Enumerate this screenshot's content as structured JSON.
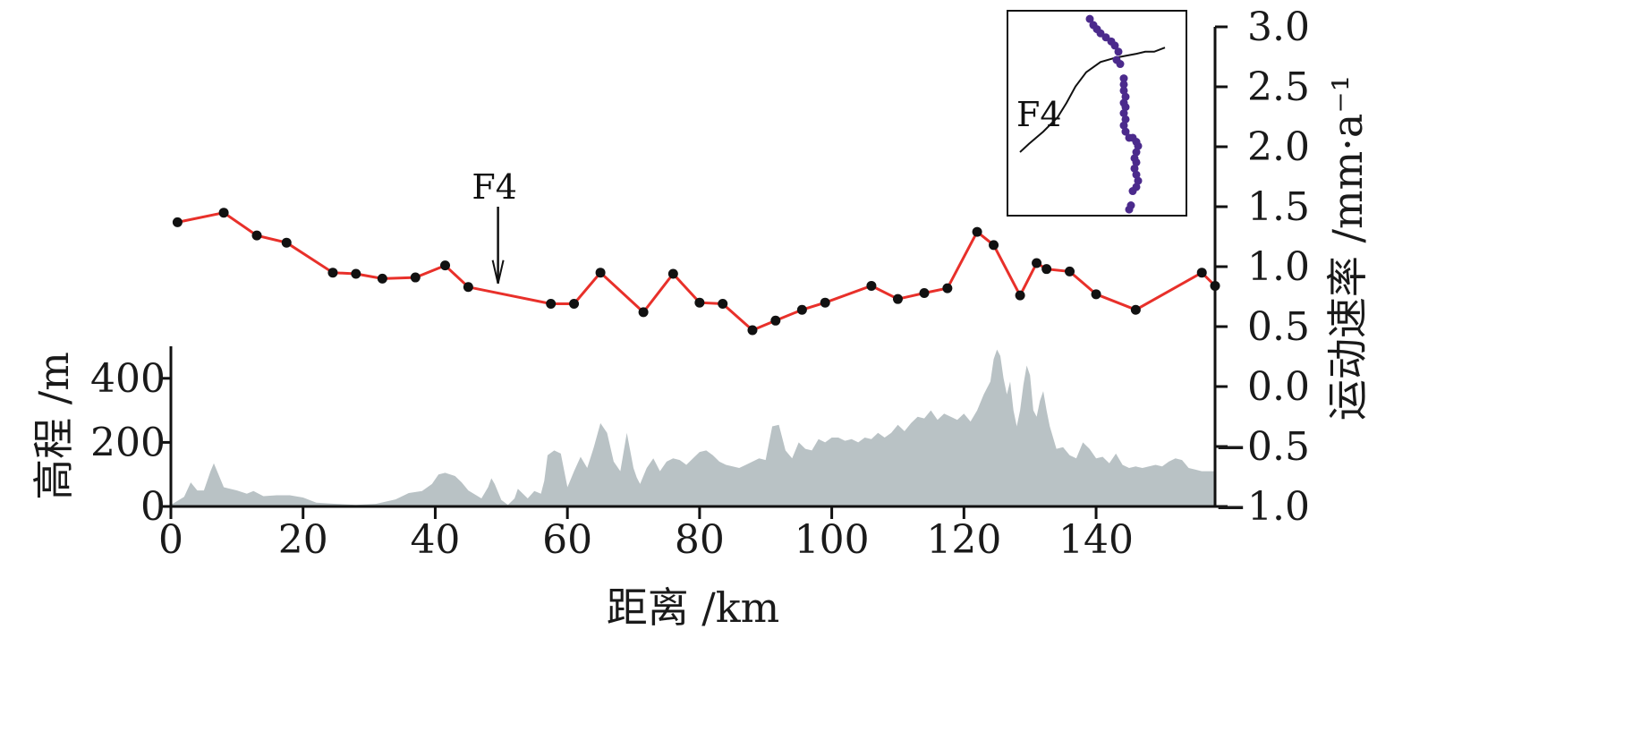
{
  "chart_data": {
    "type": "line",
    "xlabel": "距离 /km",
    "ylabel_left": "高程 /m",
    "ylabel_right": "运动速率 /mm·a⁻¹",
    "xlim": [
      0,
      158
    ],
    "ylim_left": [
      0,
      500
    ],
    "ylim_right": [
      -1.0,
      3.0
    ],
    "x_ticks": [
      0,
      20,
      40,
      60,
      80,
      100,
      120,
      140
    ],
    "x_tick_labels": [
      "0",
      "20",
      "40",
      "60",
      "80",
      "100",
      "120",
      "140"
    ],
    "y_left_ticks": [
      0,
      200,
      400
    ],
    "y_left_tick_labels": [
      "0",
      "200",
      "400"
    ],
    "y_right_ticks": [
      -1.0,
      -0.5,
      0.0,
      0.5,
      1.0,
      1.5,
      2.0,
      2.5,
      3.0
    ],
    "y_right_tick_labels": [
      "−1.0",
      "−0.5",
      "0.0",
      "0.5",
      "1.0",
      "1.5",
      "2.0",
      "2.5",
      "3.0"
    ],
    "colors": {
      "rate_line": "#e8302a",
      "rate_point": "#111111",
      "elevation_fill": "#b9c2c5",
      "inset_point": "#4b2a8c"
    },
    "series": [
      {
        "axis": "right",
        "kind": "line",
        "x": [
          1,
          8,
          13,
          17.5,
          24.5,
          28,
          32,
          37,
          41.5,
          45,
          57.5,
          61,
          65,
          71.5,
          76,
          80,
          83.5,
          88,
          91.5,
          95.5,
          99,
          106,
          110,
          114,
          117.5,
          122,
          124.5,
          128.5,
          131,
          132.5,
          136,
          140,
          146,
          156,
          158
        ],
        "y": [
          1.37,
          1.45,
          1.26,
          1.2,
          0.95,
          0.94,
          0.9,
          0.91,
          1.01,
          0.83,
          0.69,
          0.69,
          0.95,
          0.62,
          0.94,
          0.7,
          0.69,
          0.47,
          0.55,
          0.64,
          0.7,
          0.84,
          0.73,
          0.78,
          0.82,
          1.29,
          1.18,
          0.76,
          1.03,
          0.98,
          0.96,
          0.77,
          0.64,
          0.95,
          0.84
        ]
      },
      {
        "axis": "left",
        "kind": "area",
        "x": [
          0,
          2,
          3,
          4,
          5,
          6,
          6.5,
          7,
          8,
          10,
          11.5,
          12.5,
          14,
          16,
          18,
          20,
          22,
          25,
          28,
          31,
          34,
          36,
          38,
          39.5,
          40.5,
          41.5,
          43,
          44,
          45,
          47,
          48,
          48.5,
          49,
          50,
          51,
          52,
          52.5,
          53,
          54,
          55,
          56,
          56.5,
          57,
          58,
          59,
          60,
          61,
          62,
          63,
          64,
          65,
          66,
          67,
          68,
          69,
          70,
          70.5,
          71,
          72,
          73,
          74,
          75,
          76,
          77,
          78,
          79,
          80,
          81,
          82,
          83,
          84,
          85,
          86,
          87,
          88,
          89,
          90,
          91,
          92,
          93,
          94,
          95,
          96,
          97,
          98,
          99,
          100,
          101,
          102,
          103,
          104,
          105,
          106,
          107,
          108,
          109,
          110,
          111,
          112,
          113,
          114,
          115,
          116,
          117,
          118,
          119,
          120,
          121,
          122,
          123,
          124,
          124.5,
          125,
          125.5,
          126,
          126.5,
          127,
          127.5,
          128,
          128.5,
          129,
          129.5,
          130,
          130.5,
          131,
          131.5,
          132,
          132.5,
          133,
          134,
          135,
          136,
          137,
          138,
          139,
          140,
          141,
          142,
          143,
          144,
          145,
          146,
          147,
          148,
          149,
          150,
          151,
          152,
          153,
          154,
          155,
          156,
          157,
          158
        ],
        "y": [
          5,
          30,
          75,
          50,
          50,
          110,
          135,
          110,
          60,
          50,
          40,
          48,
          32,
          35,
          35,
          28,
          12,
          8,
          5,
          8,
          22,
          42,
          48,
          70,
          100,
          105,
          95,
          75,
          50,
          25,
          60,
          88,
          70,
          20,
          5,
          25,
          55,
          45,
          25,
          48,
          40,
          80,
          160,
          175,
          165,
          60,
          110,
          155,
          120,
          185,
          260,
          230,
          140,
          110,
          230,
          120,
          90,
          70,
          120,
          150,
          110,
          140,
          150,
          145,
          130,
          150,
          170,
          175,
          160,
          140,
          130,
          125,
          120,
          130,
          140,
          150,
          145,
          250,
          255,
          175,
          150,
          200,
          180,
          175,
          210,
          200,
          215,
          215,
          205,
          210,
          200,
          215,
          210,
          230,
          215,
          230,
          255,
          235,
          260,
          280,
          275,
          300,
          270,
          290,
          280,
          270,
          290,
          265,
          300,
          350,
          390,
          460,
          490,
          470,
          400,
          350,
          390,
          300,
          250,
          300,
          380,
          440,
          410,
          300,
          280,
          330,
          360,
          300,
          250,
          180,
          185,
          160,
          150,
          200,
          180,
          150,
          155,
          135,
          165,
          130,
          120,
          125,
          120,
          125,
          130,
          125,
          140,
          150,
          145,
          120,
          115,
          110,
          110,
          110
        ]
      }
    ],
    "annotations": [
      {
        "label": "F4",
        "x": 49.5,
        "arrow_tip_rate": 0.86
      }
    ],
    "inset": {
      "fault_label": "F4",
      "fault_line": [
        [
          0.07,
          0.69
        ],
        [
          0.12,
          0.65
        ],
        [
          0.2,
          0.59
        ],
        [
          0.28,
          0.52
        ],
        [
          0.33,
          0.45
        ],
        [
          0.38,
          0.37
        ],
        [
          0.44,
          0.3
        ],
        [
          0.52,
          0.25
        ],
        [
          0.6,
          0.23
        ],
        [
          0.66,
          0.22
        ],
        [
          0.72,
          0.21
        ],
        [
          0.77,
          0.2
        ],
        [
          0.82,
          0.2
        ],
        [
          0.88,
          0.18
        ]
      ],
      "points": [
        [
          0.46,
          0.04
        ],
        [
          0.48,
          0.07
        ],
        [
          0.5,
          0.09
        ],
        [
          0.52,
          0.11
        ],
        [
          0.55,
          0.13
        ],
        [
          0.58,
          0.15
        ],
        [
          0.6,
          0.17
        ],
        [
          0.62,
          0.2
        ],
        [
          0.61,
          0.24
        ],
        [
          0.63,
          0.26
        ],
        [
          0.65,
          0.33
        ],
        [
          0.65,
          0.36
        ],
        [
          0.65,
          0.39
        ],
        [
          0.66,
          0.42
        ],
        [
          0.65,
          0.45
        ],
        [
          0.66,
          0.47
        ],
        [
          0.65,
          0.5
        ],
        [
          0.66,
          0.53
        ],
        [
          0.65,
          0.56
        ],
        [
          0.66,
          0.59
        ],
        [
          0.68,
          0.62
        ],
        [
          0.7,
          0.62
        ],
        [
          0.72,
          0.64
        ],
        [
          0.73,
          0.66
        ],
        [
          0.72,
          0.69
        ],
        [
          0.71,
          0.72
        ],
        [
          0.72,
          0.74
        ],
        [
          0.71,
          0.77
        ],
        [
          0.72,
          0.8
        ],
        [
          0.73,
          0.83
        ],
        [
          0.72,
          0.86
        ],
        [
          0.7,
          0.88
        ],
        [
          0.69,
          0.95
        ],
        [
          0.68,
          0.97
        ]
      ]
    }
  }
}
